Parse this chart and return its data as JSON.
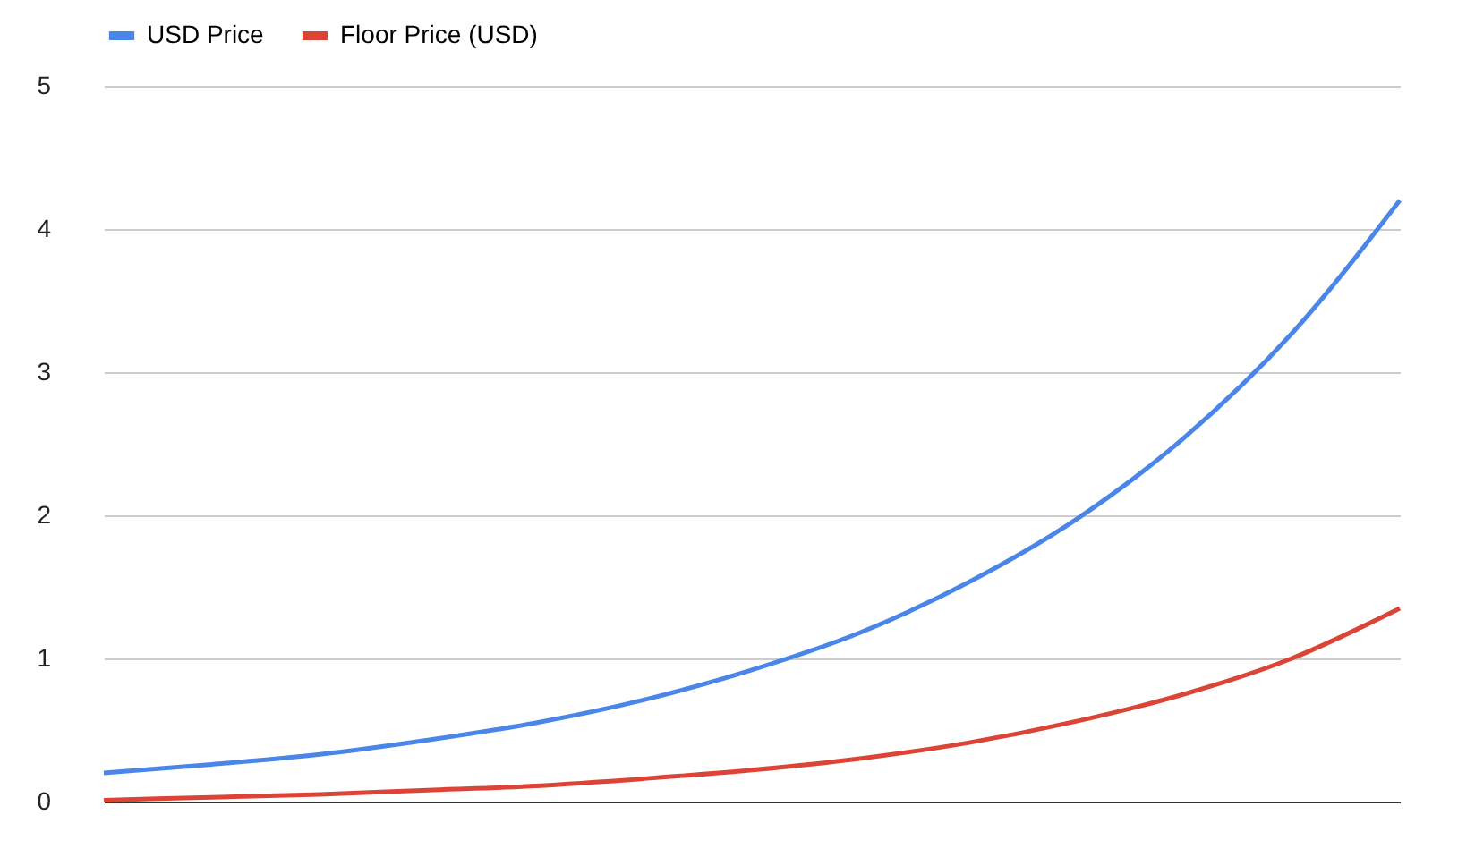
{
  "chart_data": {
    "type": "line",
    "categories": [
      null,
      null,
      null,
      null,
      null,
      null,
      null,
      null,
      null,
      null,
      null,
      null,
      null
    ],
    "series": [
      {
        "name": "USD Price",
        "color": "#4a86e8",
        "values": [
          0.2,
          0.26,
          0.33,
          0.43,
          0.55,
          0.71,
          0.92,
          1.18,
          1.53,
          1.97,
          2.54,
          3.27,
          4.2
        ]
      },
      {
        "name": "Floor Price (USD)",
        "color": "#db4437",
        "values": [
          0.01,
          0.03,
          0.05,
          0.08,
          0.11,
          0.16,
          0.22,
          0.3,
          0.41,
          0.56,
          0.75,
          1.0,
          1.35
        ]
      }
    ],
    "ylim": [
      0,
      5
    ],
    "yticks": [
      0,
      1,
      2,
      3,
      4,
      5
    ],
    "grid": "y",
    "legend": "top",
    "tick_labels": "y",
    "marker": "none",
    "line_style": "solid"
  }
}
